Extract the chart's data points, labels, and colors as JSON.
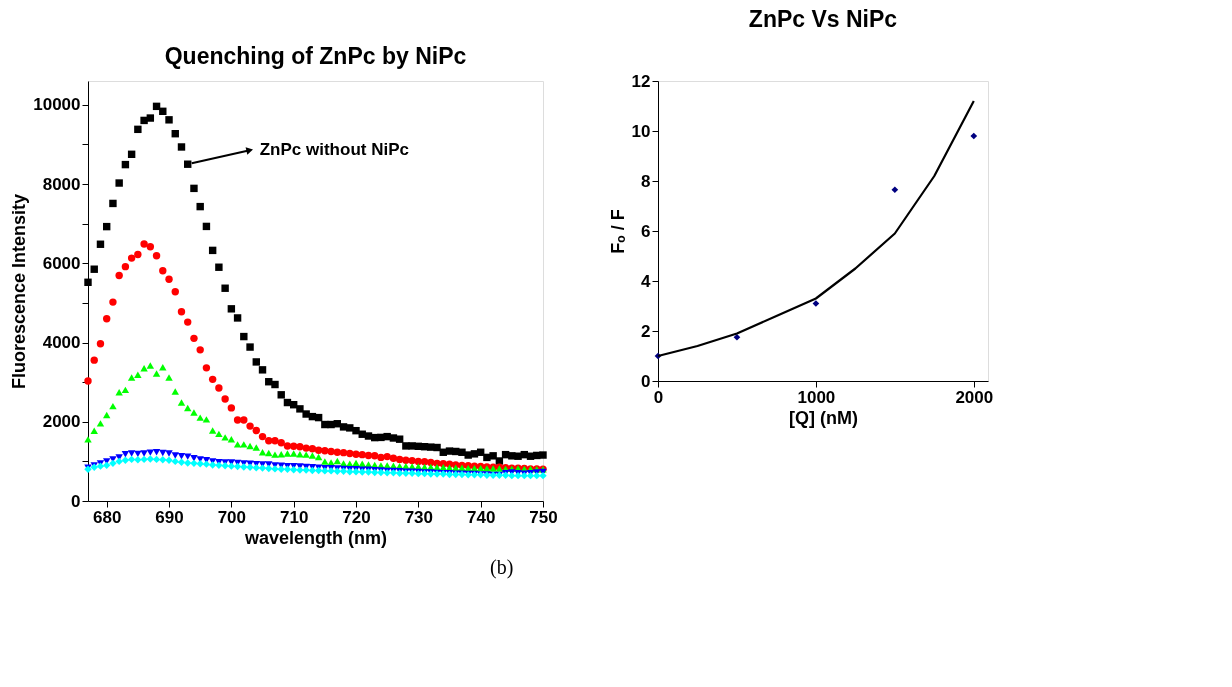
{
  "chart_data": [
    {
      "type": "scatter",
      "title": "Quenching of ZnPc by NiPc",
      "xlabel": "wavelength (nm)",
      "ylabel": "Fluorescence Intensity",
      "grid": false,
      "x": [
        677,
        678,
        679,
        680,
        681,
        682,
        683,
        684,
        685,
        686,
        687,
        688,
        689,
        690,
        691,
        692,
        693,
        694,
        695,
        696,
        697,
        698,
        699,
        700,
        701,
        702,
        703,
        704,
        705,
        706,
        707,
        708,
        709,
        710,
        711,
        712,
        713,
        714,
        715,
        716,
        717,
        718,
        719,
        720,
        721,
        722,
        723,
        724,
        725,
        726,
        727,
        728,
        729,
        730,
        731,
        732,
        733,
        734,
        735,
        736,
        737,
        738,
        739,
        740,
        741,
        742,
        743,
        744,
        745,
        746,
        747,
        748,
        749,
        750
      ],
      "xlim": [
        677,
        750
      ],
      "xticks": [
        680,
        690,
        700,
        710,
        720,
        730,
        740,
        750
      ],
      "ylim": [
        0,
        10600
      ],
      "yticks": [
        0,
        {
          "value": 1000,
          "label": null
        },
        2000,
        {
          "value": 3000,
          "label": null
        },
        4000,
        {
          "value": 5000,
          "label": null
        },
        6000,
        {
          "value": 7000,
          "label": null
        },
        8000,
        {
          "value": 9000,
          "label": null
        },
        10000
      ],
      "series": [
        {
          "color": "#000000",
          "marker": "square",
          "values": [
            5520,
            5850,
            6480,
            6925,
            7510,
            8025,
            8490,
            8750,
            9380,
            9605,
            9665,
            9960,
            9835,
            9620,
            9270,
            8935,
            8500,
            7890,
            7430,
            6930,
            6325,
            5900,
            5370,
            4850,
            4620,
            4150,
            3885,
            3510,
            3310,
            3010,
            2940,
            2680,
            2485,
            2430,
            2325,
            2195,
            2130,
            2105,
            1930,
            1930,
            1950,
            1870,
            1845,
            1775,
            1685,
            1640,
            1600,
            1605,
            1625,
            1590,
            1560,
            1390,
            1390,
            1380,
            1370,
            1360,
            1350,
            1230,
            1260,
            1250,
            1230,
            1160,
            1190,
            1230,
            1100,
            1140,
            1010,
            1170,
            1140,
            1130,
            1170,
            1130,
            1150,
            1160
          ]
        },
        {
          "color": "#ff0000",
          "marker": "circle",
          "values": [
            3030,
            3555,
            3970,
            4600,
            5020,
            5690,
            5915,
            6130,
            6220,
            6485,
            6415,
            6190,
            5810,
            5595,
            5280,
            4775,
            4515,
            4105,
            3815,
            3360,
            3070,
            2850,
            2575,
            2350,
            2045,
            2045,
            1890,
            1780,
            1625,
            1520,
            1520,
            1470,
            1390,
            1380,
            1370,
            1335,
            1320,
            1280,
            1270,
            1250,
            1230,
            1220,
            1200,
            1180,
            1170,
            1150,
            1140,
            1100,
            1120,
            1080,
            1050,
            1030,
            1020,
            1000,
            990,
            970,
            950,
            940,
            930,
            910,
            900,
            890,
            880,
            870,
            860,
            850,
            850,
            840,
            830,
            830,
            820,
            810,
            810,
            800
          ]
        },
        {
          "color": "#00ff00",
          "marker": "triangle",
          "values": [
            1555,
            1775,
            1960,
            2170,
            2395,
            2745,
            2805,
            3115,
            3185,
            3350,
            3420,
            3220,
            3375,
            3115,
            2765,
            2485,
            2345,
            2235,
            2105,
            2060,
            1780,
            1695,
            1605,
            1560,
            1430,
            1430,
            1390,
            1350,
            1230,
            1210,
            1170,
            1180,
            1200,
            1200,
            1180,
            1170,
            1150,
            1110,
            995,
            970,
            1010,
            950,
            940,
            960,
            940,
            920,
            910,
            900,
            900,
            890,
            880,
            880,
            870,
            870,
            860,
            860,
            850,
            850,
            840,
            840,
            840,
            830,
            830,
            830,
            820,
            820,
            820,
            810,
            810,
            820,
            810,
            810,
            800,
            800
          ]
        },
        {
          "color": "#0000ff",
          "marker": "triangle-down",
          "values": [
            840,
            900,
            950,
            1000,
            1050,
            1100,
            1180,
            1200,
            1190,
            1200,
            1220,
            1230,
            1210,
            1200,
            1150,
            1130,
            1120,
            1080,
            1050,
            1030,
            1000,
            980,
            970,
            970,
            960,
            950,
            940,
            930,
            920,
            920,
            900,
            890,
            880,
            880,
            870,
            860,
            850,
            840,
            830,
            830,
            820,
            810,
            800,
            800,
            790,
            790,
            780,
            770,
            760,
            760,
            750,
            740,
            740,
            730,
            720,
            720,
            710,
            700,
            700,
            690,
            690,
            680,
            680,
            670,
            670,
            660,
            660,
            700,
            720,
            700,
            690,
            700,
            720,
            730
          ]
        },
        {
          "color": "#00ffff",
          "marker": "diamond",
          "values": [
            800,
            850,
            880,
            900,
            950,
            1000,
            1030,
            1050,
            1040,
            1050,
            1060,
            1050,
            1040,
            1030,
            1000,
            980,
            960,
            950,
            940,
            930,
            910,
            900,
            890,
            880,
            870,
            860,
            850,
            840,
            830,
            820,
            810,
            800,
            800,
            790,
            780,
            780,
            770,
            770,
            760,
            760,
            750,
            750,
            740,
            740,
            730,
            730,
            720,
            720,
            710,
            710,
            700,
            700,
            700,
            690,
            690,
            680,
            680,
            680,
            670,
            670,
            670,
            660,
            660,
            660,
            650,
            650,
            650,
            650,
            640,
            640,
            640,
            640,
            640,
            640
          ]
        }
      ],
      "annotations": [
        {
          "text": "ZnPc without NiPc",
          "x": 693,
          "y": 8500
        }
      ]
    },
    {
      "type": "scatter",
      "title": "ZnPc Vs NiPc",
      "xlabel": "[Q] (nM)",
      "ylabel": "Fₒ / F",
      "grid": false,
      "xlim": [
        0,
        2090
      ],
      "xticks": [
        0,
        1000,
        2000
      ],
      "ylim": [
        0,
        12
      ],
      "yticks": [
        0,
        2,
        4,
        6,
        8,
        10,
        12
      ],
      "series": [
        {
          "type": "scatter",
          "color": "#000080",
          "marker": "diamond",
          "x": [
            0,
            500,
            1000,
            1500,
            2000
          ],
          "values": [
            1.0,
            1.75,
            3.1,
            7.65,
            9.8
          ]
        },
        {
          "type": "line",
          "color": "#000000",
          "marker": "none",
          "x": [
            0,
            250,
            500,
            750,
            1000,
            1250,
            1500,
            1750,
            2000
          ],
          "values": [
            1.0,
            1.4,
            1.9,
            2.6,
            3.3,
            4.5,
            5.9,
            8.2,
            11.2
          ]
        }
      ],
      "annotations": [
        "(b)"
      ]
    }
  ]
}
